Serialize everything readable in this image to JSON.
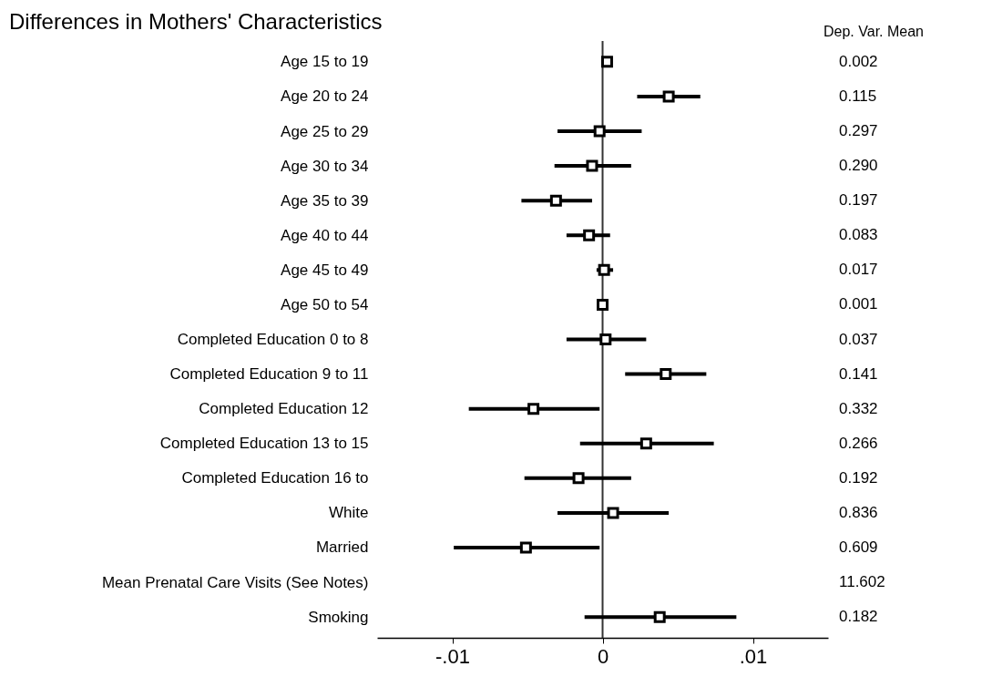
{
  "chart_data": {
    "type": "scatter",
    "orientation": "horizontal",
    "title": "Differences in Mothers' Characteristics",
    "y2label": "Dep. Var. Mean",
    "categories": [
      "Age 15 to 19",
      "Age 20 to 24",
      "Age 25 to 29",
      "Age 30 to 34",
      "Age 35 to 39",
      "Age 40 to 44",
      "Age 45 to 49",
      "Age 50 to 54",
      "Completed Education 0 to 8",
      "Completed Education 9 to 11",
      "Completed Education 12",
      "Completed Education 13 to 15",
      "Completed Education 16 to",
      "White",
      "Married",
      "Mean Prenatal Care Visits (See Notes)",
      "Smoking"
    ],
    "series": [
      {
        "color": "#000000",
        "values": [
          0.0003,
          0.0044,
          -0.0002,
          -0.0007,
          -0.0031,
          -0.0009,
          0.0001,
          0.0,
          0.0002,
          0.0042,
          -0.0046,
          0.0029,
          -0.0016,
          0.0007,
          -0.0051,
          null,
          0.0038
        ],
        "errors": [
          null,
          [
            0.0023,
            0.0065
          ],
          [
            -0.003,
            0.0026
          ],
          [
            -0.0032,
            0.0019
          ],
          [
            -0.0054,
            -0.0007
          ],
          [
            -0.0024,
            0.0005
          ],
          [
            -0.0004,
            0.0007
          ],
          null,
          [
            -0.0024,
            0.0029
          ],
          [
            0.0015,
            0.0069
          ],
          [
            -0.0089,
            -0.0002
          ],
          [
            -0.0015,
            0.0074
          ],
          [
            -0.0052,
            0.0019
          ],
          [
            -0.003,
            0.0044
          ],
          [
            -0.0099,
            -0.0002
          ],
          null,
          [
            -0.0012,
            0.0089
          ]
        ]
      }
    ],
    "xlim": [
      -0.015,
      0.015
    ],
    "xticks": [
      {
        "value": -0.01,
        "label": "-.01"
      },
      0,
      {
        "value": 0.01,
        "label": ".01"
      }
    ],
    "ref_lines": [
      {
        "axis": "x",
        "value": 0,
        "color": "#333333"
      }
    ],
    "marker": "square",
    "grid": false,
    "annotations": [
      "0.002",
      "0.115",
      "0.297",
      "0.290",
      "0.197",
      "0.083",
      "0.017",
      "0.001",
      "0.037",
      "0.141",
      "0.332",
      "0.266",
      "0.192",
      "0.836",
      "0.609",
      "11.602",
      "0.182"
    ]
  }
}
